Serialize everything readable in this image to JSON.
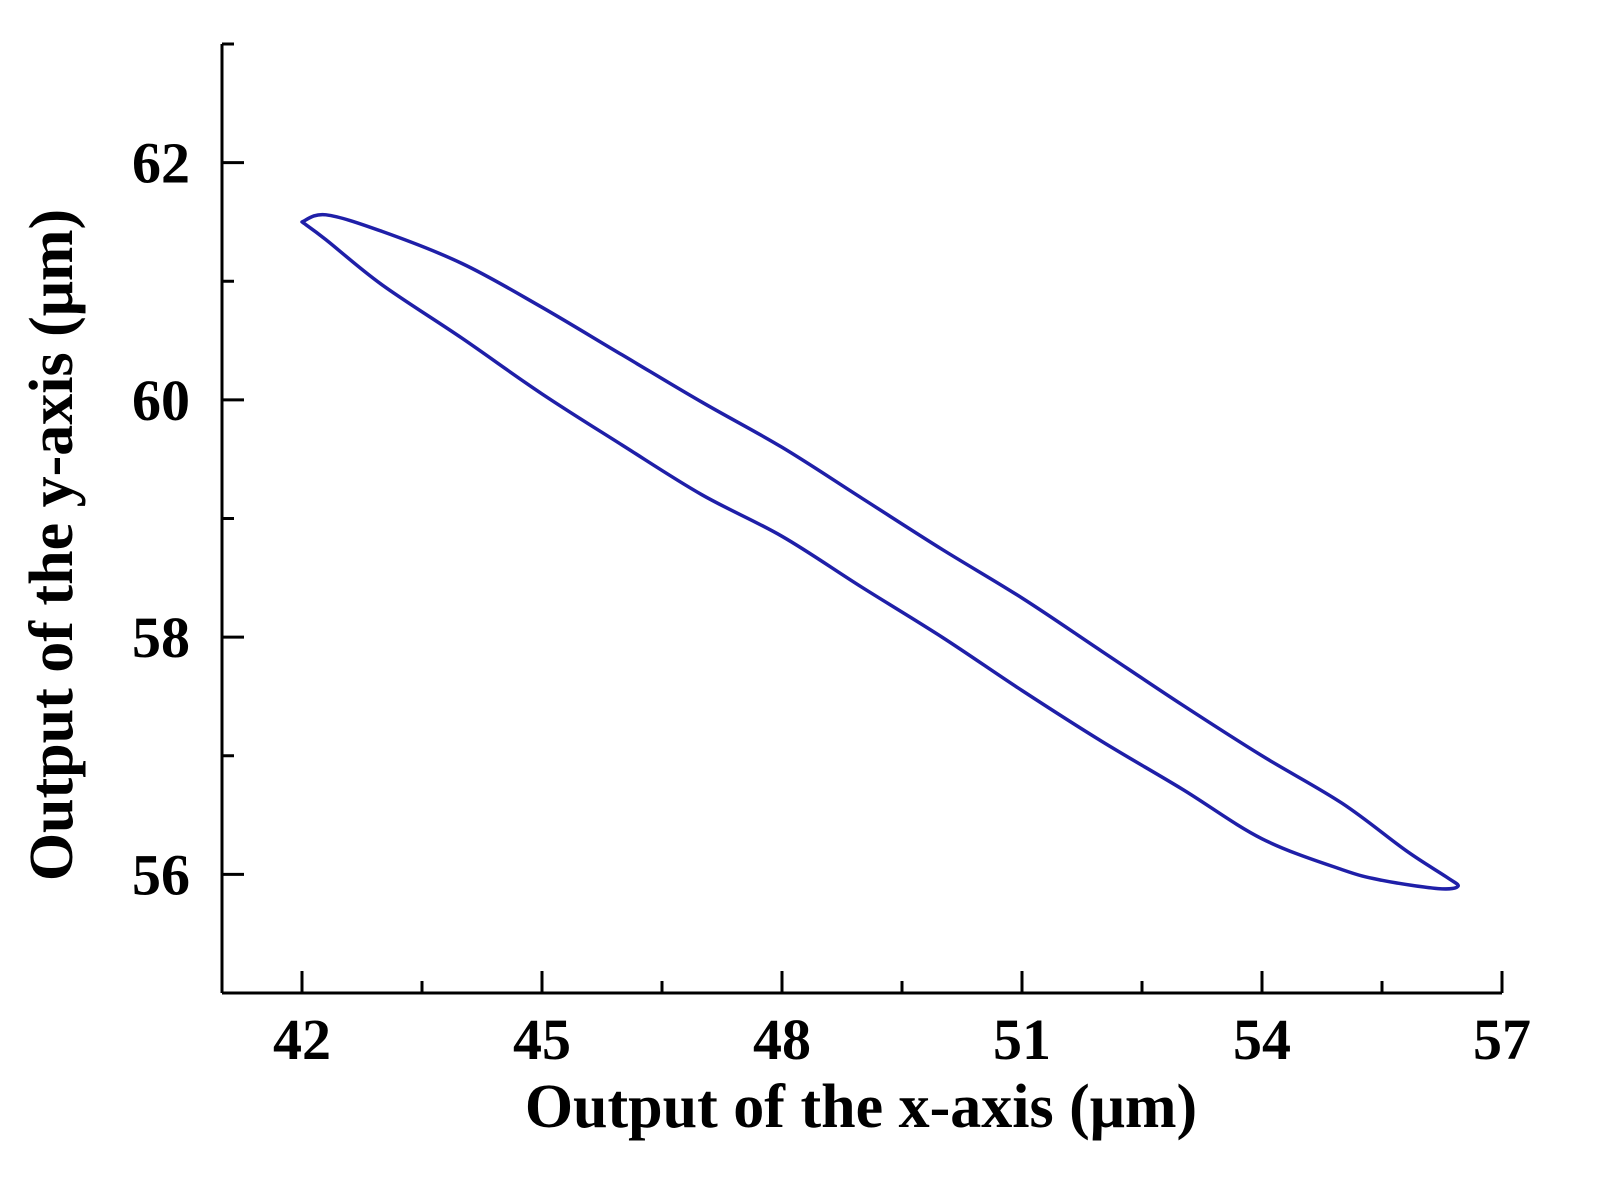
{
  "chart_data": {
    "type": "line",
    "title": "",
    "xlabel": "Output of the x-axis (μm)",
    "ylabel": "Output of the y-axis (μm)",
    "xlim": [
      41,
      57
    ],
    "ylim": [
      55,
      63
    ],
    "x_ticks": [
      42,
      45,
      48,
      51,
      54,
      57
    ],
    "x_tick_labels": [
      "42",
      "45",
      "48",
      "51",
      "54",
      "57"
    ],
    "x_minor_ticks": [
      43.5,
      46.5,
      49.5,
      52.5,
      55.5
    ],
    "y_ticks": [
      56,
      58,
      60,
      62
    ],
    "y_tick_labels": [
      "56",
      "58",
      "60",
      "62"
    ],
    "y_minor_ticks": [
      57,
      59,
      61,
      63
    ],
    "grid": false,
    "legend": "none",
    "series": [
      {
        "color": "#1f1fa8",
        "closed": true,
        "points": [
          [
            42.0,
            61.5
          ],
          [
            42.3,
            61.56
          ],
          [
            43.0,
            61.42
          ],
          [
            44.0,
            61.15
          ],
          [
            45.0,
            60.78
          ],
          [
            46.0,
            60.38
          ],
          [
            47.0,
            59.98
          ],
          [
            48.0,
            59.6
          ],
          [
            49.0,
            59.17
          ],
          [
            50.0,
            58.74
          ],
          [
            51.0,
            58.33
          ],
          [
            52.0,
            57.88
          ],
          [
            53.0,
            57.43
          ],
          [
            54.0,
            57.0
          ],
          [
            55.0,
            56.6
          ],
          [
            55.8,
            56.2
          ],
          [
            56.3,
            55.98
          ],
          [
            56.45,
            55.9
          ],
          [
            56.2,
            55.88
          ],
          [
            55.5,
            55.95
          ],
          [
            55.0,
            56.04
          ],
          [
            54.0,
            56.3
          ],
          [
            53.0,
            56.72
          ],
          [
            52.0,
            57.12
          ],
          [
            51.0,
            57.55
          ],
          [
            50.0,
            58.0
          ],
          [
            49.0,
            58.42
          ],
          [
            48.0,
            58.85
          ],
          [
            47.0,
            59.2
          ],
          [
            46.0,
            59.62
          ],
          [
            45.0,
            60.05
          ],
          [
            44.0,
            60.52
          ],
          [
            43.0,
            60.97
          ],
          [
            42.3,
            61.35
          ],
          [
            42.0,
            61.5
          ]
        ]
      }
    ]
  }
}
